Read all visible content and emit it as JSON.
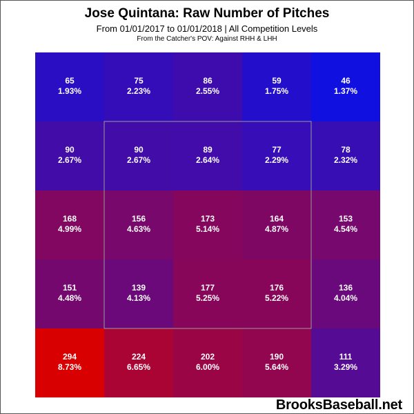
{
  "chart_data": {
    "type": "heatmap",
    "title": "Jose Quintana: Raw Number of Pitches",
    "subtitle": "From 01/01/2017 to 01/01/2018 | All Competition Levels",
    "note": "From the Catcher's POV:  Against RHH & LHH",
    "rows": 5,
    "cols": 5,
    "cells": [
      [
        {
          "count": "65",
          "pct": "1.93%",
          "value": 65
        },
        {
          "count": "75",
          "pct": "2.23%",
          "value": 75
        },
        {
          "count": "86",
          "pct": "2.55%",
          "value": 86
        },
        {
          "count": "59",
          "pct": "1.75%",
          "value": 59
        },
        {
          "count": "46",
          "pct": "1.37%",
          "value": 46
        }
      ],
      [
        {
          "count": "90",
          "pct": "2.67%",
          "value": 90
        },
        {
          "count": "90",
          "pct": "2.67%",
          "value": 90
        },
        {
          "count": "89",
          "pct": "2.64%",
          "value": 89
        },
        {
          "count": "77",
          "pct": "2.29%",
          "value": 77
        },
        {
          "count": "78",
          "pct": "2.32%",
          "value": 78
        }
      ],
      [
        {
          "count": "168",
          "pct": "4.99%",
          "value": 168
        },
        {
          "count": "156",
          "pct": "4.63%",
          "value": 156
        },
        {
          "count": "173",
          "pct": "5.14%",
          "value": 173
        },
        {
          "count": "164",
          "pct": "4.87%",
          "value": 164
        },
        {
          "count": "153",
          "pct": "4.54%",
          "value": 153
        }
      ],
      [
        {
          "count": "151",
          "pct": "4.48%",
          "value": 151
        },
        {
          "count": "139",
          "pct": "4.13%",
          "value": 139
        },
        {
          "count": "177",
          "pct": "5.25%",
          "value": 177
        },
        {
          "count": "176",
          "pct": "5.22%",
          "value": 176
        },
        {
          "count": "136",
          "pct": "4.04%",
          "value": 136
        }
      ],
      [
        {
          "count": "294",
          "pct": "8.73%",
          "value": 294
        },
        {
          "count": "224",
          "pct": "6.65%",
          "value": 224
        },
        {
          "count": "202",
          "pct": "6.00%",
          "value": 202
        },
        {
          "count": "190",
          "pct": "5.64%",
          "value": 190
        },
        {
          "count": "111",
          "pct": "3.29%",
          "value": 111
        }
      ]
    ],
    "color_scale": {
      "low": "#1010e0",
      "high": "#d80000",
      "min": 46,
      "max": 294
    },
    "strike_zone": {
      "rows": [
        1,
        3
      ],
      "cols": [
        1,
        3
      ]
    }
  },
  "watermark": "BrooksBaseball.net"
}
